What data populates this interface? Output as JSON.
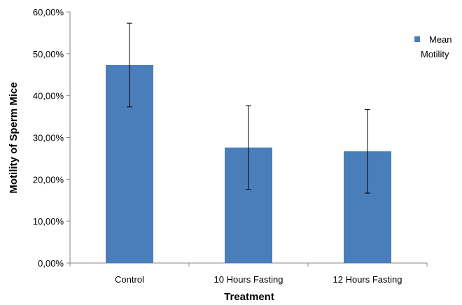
{
  "chart_data": {
    "type": "bar",
    "title": "",
    "xlabel": "Treatment",
    "ylabel": "Motility of Sperm Mice",
    "categories": [
      "Control",
      "10 Hours Fasting",
      "12 Hours Fasting"
    ],
    "series": [
      {
        "name": "Mean Motility",
        "values": [
          47.3,
          27.6,
          26.7
        ],
        "error": [
          10.0,
          10.0,
          10.0
        ],
        "color": "#4a7ebb"
      }
    ],
    "ylim": [
      0,
      60
    ],
    "yticks": [
      0,
      10,
      20,
      30,
      40,
      50,
      60
    ],
    "ytick_labels": [
      "0,00%",
      "10,00%",
      "20,00%",
      "30,00%",
      "40,00%",
      "50,00%",
      "60,00%"
    ],
    "legend_lines": [
      "Mean",
      "Motility"
    ],
    "legend_position": "right",
    "grid": false
  }
}
